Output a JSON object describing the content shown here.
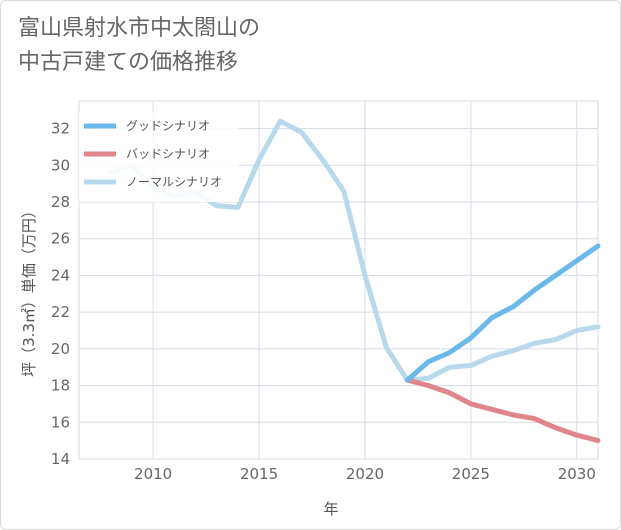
{
  "title_line1": "富山県射水市中太閤山の",
  "title_line2": "中古戸建ての価格推移",
  "chart_data": {
    "type": "line",
    "xlabel": "年",
    "ylabel": "坪（3.3㎡）単価（万円）",
    "xlim": [
      2006.5,
      2031
    ],
    "ylim": [
      14,
      33.5
    ],
    "xticks": [
      2010,
      2015,
      2020,
      2025,
      2030
    ],
    "yticks": [
      14,
      16,
      18,
      20,
      22,
      24,
      26,
      28,
      30,
      32
    ],
    "legend_position": "top-left",
    "series": [
      {
        "name": "グッドシナリオ",
        "color": "#6bb8ea",
        "x": [
          2022,
          2023,
          2024,
          2025,
          2026,
          2027,
          2028,
          2029,
          2030,
          2031
        ],
        "y": [
          18.3,
          19.3,
          19.8,
          20.6,
          21.7,
          22.3,
          23.2,
          24.0,
          24.8,
          25.6
        ]
      },
      {
        "name": "バッドシナリオ",
        "color": "#e0858c",
        "x": [
          2022,
          2023,
          2024,
          2025,
          2026,
          2027,
          2028,
          2029,
          2030,
          2031
        ],
        "y": [
          18.3,
          18.0,
          17.6,
          17.0,
          16.7,
          16.4,
          16.2,
          15.7,
          15.3,
          15.0
        ]
      },
      {
        "name": "ノーマルシナリオ",
        "color": "#b8d9ec",
        "x": [
          2008,
          2009,
          2010,
          2011,
          2012,
          2013,
          2014,
          2015,
          2016,
          2017,
          2018,
          2019,
          2020,
          2021,
          2022,
          2023,
          2024,
          2025,
          2026,
          2027,
          2028,
          2029,
          2030,
          2031
        ],
        "y": [
          29.6,
          30.0,
          28.8,
          28.3,
          28.5,
          27.8,
          27.7,
          30.3,
          32.4,
          31.8,
          30.3,
          28.6,
          24.0,
          20.1,
          18.3,
          18.4,
          19.0,
          19.1,
          19.6,
          19.9,
          20.3,
          20.5,
          21.0,
          21.2
        ]
      }
    ]
  }
}
